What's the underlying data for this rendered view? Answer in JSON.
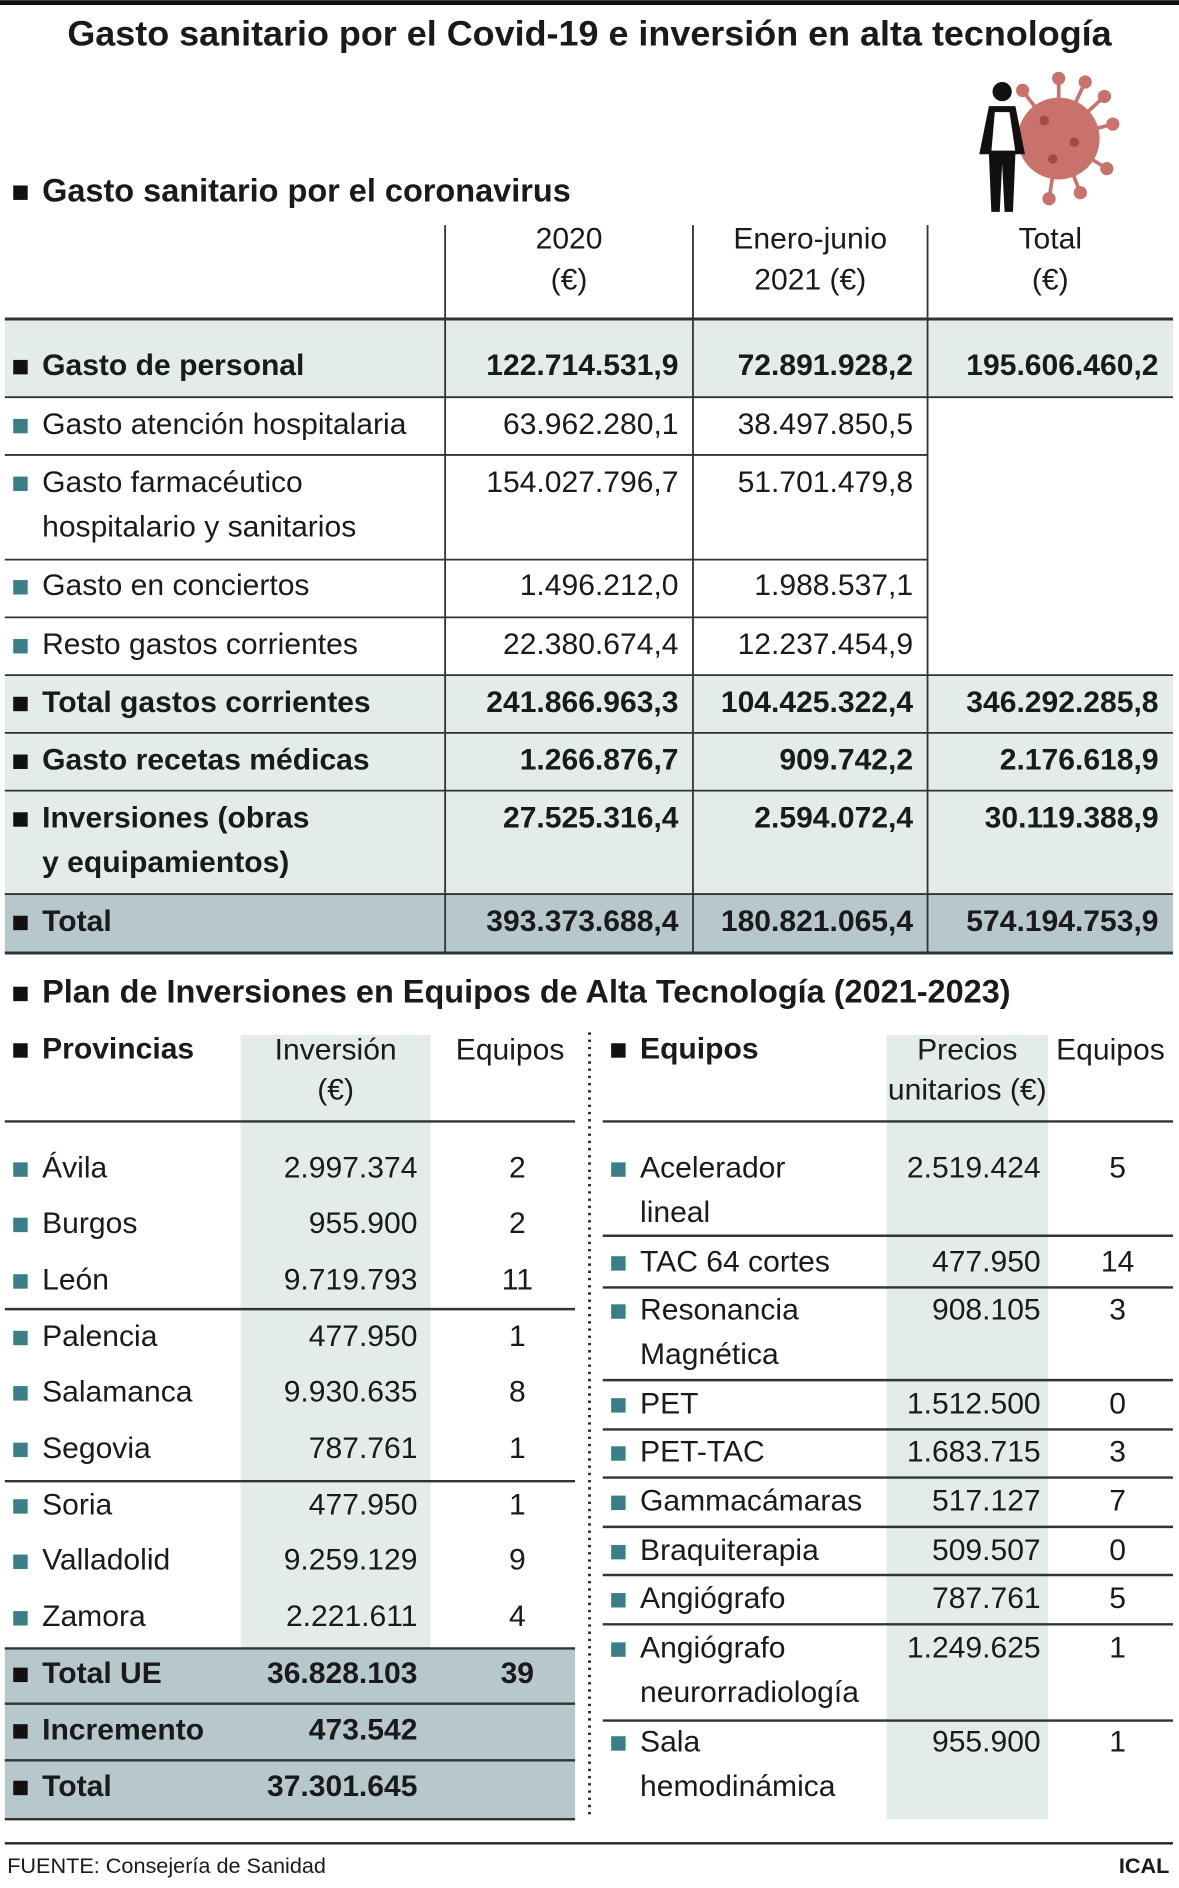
{
  "title": "Gasto sanitario por el Covid-19 e inversión en alta tecnología",
  "health": {
    "heading": "Gasto sanitario por el coronavirus",
    "columns": [
      [
        "2020",
        "(€)"
      ],
      [
        "Enero-junio",
        "2021 (€)"
      ],
      [
        "Total",
        "(€)"
      ]
    ],
    "rows": [
      {
        "label": [
          "Gasto de personal"
        ],
        "values": [
          "122.714.531,9",
          "72.891.928,2",
          "195.606.460,2"
        ]
      },
      {
        "label": [
          "Gasto atención hospitalaria"
        ],
        "values": [
          "63.962.280,1",
          "38.497.850,5"
        ]
      },
      {
        "label": [
          "Gasto farmacéutico",
          "hospitalario y sanitarios"
        ],
        "values": [
          "154.027.796,7",
          "51.701.479,8"
        ]
      },
      {
        "label": [
          "Gasto en conciertos"
        ],
        "values": [
          "1.496.212,0",
          "1.988.537,1"
        ]
      },
      {
        "label": [
          "Resto gastos corrientes"
        ],
        "values": [
          "22.380.674,4",
          "12.237.454,9"
        ]
      },
      {
        "label": [
          "Total gastos corrientes"
        ],
        "values": [
          "241.866.963,3",
          "104.425.322,4",
          "346.292.285,8"
        ]
      },
      {
        "label": [
          "Gasto recetas médicas"
        ],
        "values": [
          "1.266.876,7",
          "909.742,2",
          "2.176.618,9"
        ]
      },
      {
        "label": [
          "Inversiones (obras",
          "y equipamientos)"
        ],
        "values": [
          "27.525.316,4",
          "2.594.072,4",
          "30.119.388,9"
        ]
      },
      {
        "label": [
          "Total"
        ],
        "values": [
          "393.373.688,4",
          "180.821.065,4",
          "574.194.753,9"
        ]
      }
    ]
  },
  "plan": {
    "heading": "Plan de Inversiones en Equipos de Alta Tecnología (2021-2023)",
    "provinces": {
      "columns": [
        [
          "Provincias"
        ],
        [
          "Inversión",
          "(€)"
        ],
        [
          "Equipos"
        ]
      ],
      "rows": [
        {
          "label": [
            "Ávila"
          ],
          "values": [
            "2.997.374",
            "2"
          ]
        },
        {
          "label": [
            "Burgos"
          ],
          "values": [
            "955.900",
            "2"
          ]
        },
        {
          "label": [
            "León"
          ],
          "values": [
            "9.719.793",
            "11"
          ]
        },
        {
          "label": [
            "Palencia"
          ],
          "values": [
            "477.950",
            "1"
          ]
        },
        {
          "label": [
            "Salamanca"
          ],
          "values": [
            "9.930.635",
            "8"
          ]
        },
        {
          "label": [
            "Segovia"
          ],
          "values": [
            "787.761",
            "1"
          ]
        },
        {
          "label": [
            "Soria"
          ],
          "values": [
            "477.950",
            "1"
          ]
        },
        {
          "label": [
            "Valladolid"
          ],
          "values": [
            "9.259.129",
            "9"
          ]
        },
        {
          "label": [
            "Zamora"
          ],
          "values": [
            "2.221.611",
            "4"
          ]
        },
        {
          "label": [
            "Total UE"
          ],
          "values": [
            "36.828.103",
            "39"
          ]
        },
        {
          "label": [
            "Incremento"
          ],
          "values": [
            "473.542"
          ]
        },
        {
          "label": [
            "Total"
          ],
          "values": [
            "37.301.645"
          ]
        }
      ]
    },
    "equipment": {
      "columns": [
        [
          "Equipos"
        ],
        [
          "Precios",
          "unitarios (€)"
        ],
        [
          "Equipos"
        ]
      ],
      "rows": [
        {
          "label": [
            "Acelerador",
            "lineal"
          ],
          "values": [
            "2.519.424",
            "5"
          ]
        },
        {
          "label": [
            "TAC 64 cortes"
          ],
          "values": [
            "477.950",
            "14"
          ]
        },
        {
          "label": [
            "Resonancia",
            "Magnética"
          ],
          "values": [
            "908.105",
            "3"
          ]
        },
        {
          "label": [
            "PET"
          ],
          "values": [
            "1.512.500",
            "0"
          ]
        },
        {
          "label": [
            "PET-TAC"
          ],
          "values": [
            "1.683.715",
            "3"
          ]
        },
        {
          "label": [
            "Gammacámaras"
          ],
          "values": [
            "517.127",
            "7"
          ]
        },
        {
          "label": [
            "Braquiterapia"
          ],
          "values": [
            "509.507",
            "0"
          ]
        },
        {
          "label": [
            "Angiógrafo"
          ],
          "values": [
            "787.761",
            "5"
          ]
        },
        {
          "label": [
            "Angiógrafo",
            "neurorradiología"
          ],
          "values": [
            "1.249.625",
            "1"
          ]
        },
        {
          "label": [
            "Sala",
            "hemodinámica"
          ],
          "values": [
            "955.900",
            "1"
          ]
        }
      ]
    }
  },
  "source": "FUENTE: Consejería de Sanidad",
  "credit": "ICAL"
}
